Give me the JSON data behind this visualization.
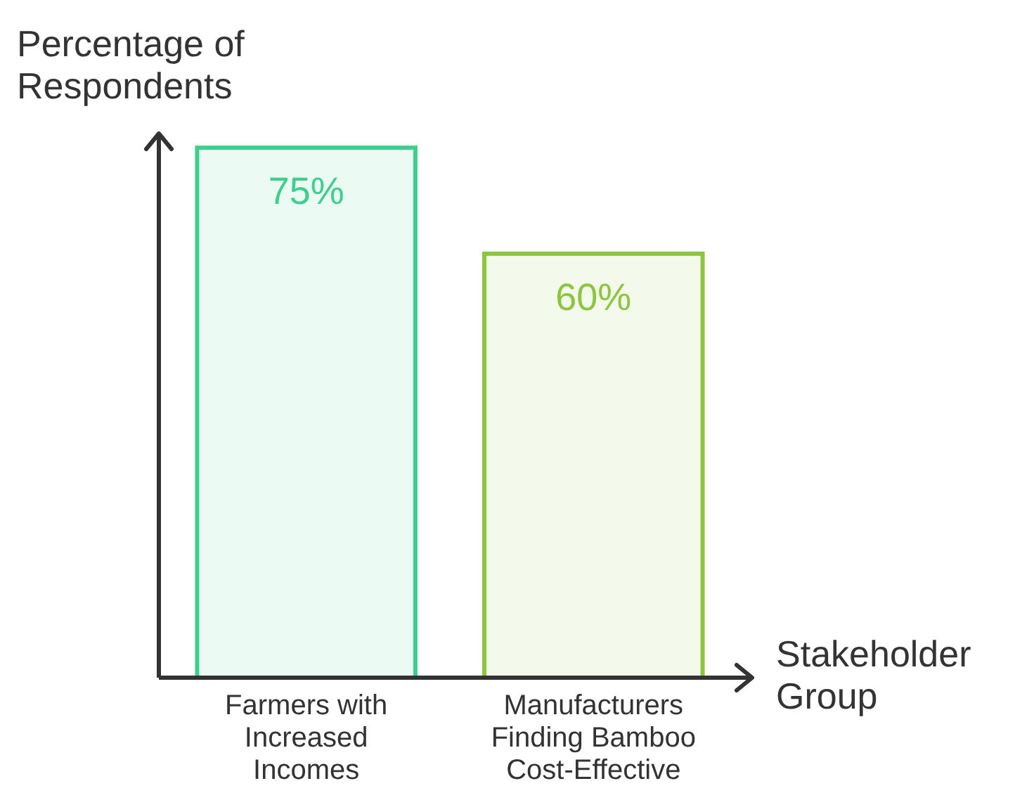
{
  "chart_data": {
    "type": "bar",
    "xlabel": "Stakeholder Group",
    "ylabel": "Percentage of Respondents",
    "categories": [
      "Farmers with Increased Incomes",
      "Manufacturers Finding Bamboo Cost-Effective"
    ],
    "values": [
      75,
      60
    ],
    "colors": [
      "#3ecf8e",
      "#8cc63f"
    ],
    "value_labels": [
      "75%",
      "60%"
    ],
    "ylim": [
      0,
      77
    ]
  }
}
